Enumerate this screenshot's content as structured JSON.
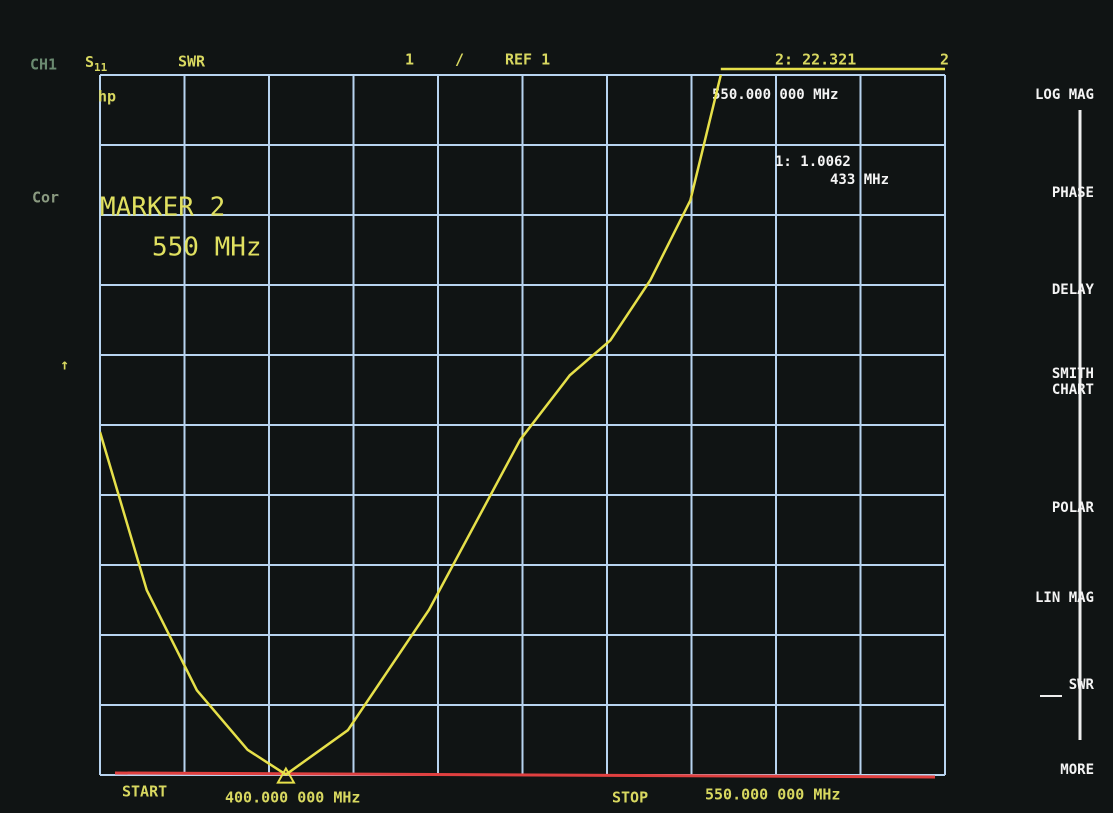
{
  "header": {
    "channel": "CH1",
    "parameter": {
      "letter": "S",
      "subscript": "11"
    },
    "format": "SWR",
    "scale": "1",
    "scale_unit": "/",
    "reference": "REF 1",
    "marker_readout": "2: 22.321",
    "marker_flag": "2",
    "marker_frequency": "550.000 000 MHz"
  },
  "marker1": {
    "readout": "1: 1.0062",
    "frequency": "433 MHz"
  },
  "left_panel": {
    "correction": "Cor",
    "logo": "hp",
    "ref_arrow": "↑"
  },
  "active_marker": {
    "title": "MARKER 2",
    "frequency": "550 MHz"
  },
  "footer": {
    "start_label": "START",
    "start_value": "400.000 000 MHz",
    "stop_label": "STOP",
    "stop_value": "550.000 000 MHz"
  },
  "softkeys": [
    "LOG MAG",
    "PHASE",
    "DELAY",
    "SMITH CHART",
    "POLAR",
    "LIN MAG",
    "SWR",
    "MORE"
  ],
  "trace": {
    "x": [
      400,
      408.3,
      417.2,
      426.2,
      433,
      444,
      458.4,
      474.6,
      483.4,
      490.6,
      497.7,
      504.8,
      510.2
    ],
    "y": [
      5.9,
      3.64,
      2.21,
      1.36,
      1.0062,
      1.64,
      3.36,
      5.79,
      6.71,
      7.21,
      8.07,
      9.21,
      11
    ],
    "xlim": [
      400,
      550
    ],
    "ylim": [
      1,
      11
    ],
    "color": "#e6e04a"
  }
}
